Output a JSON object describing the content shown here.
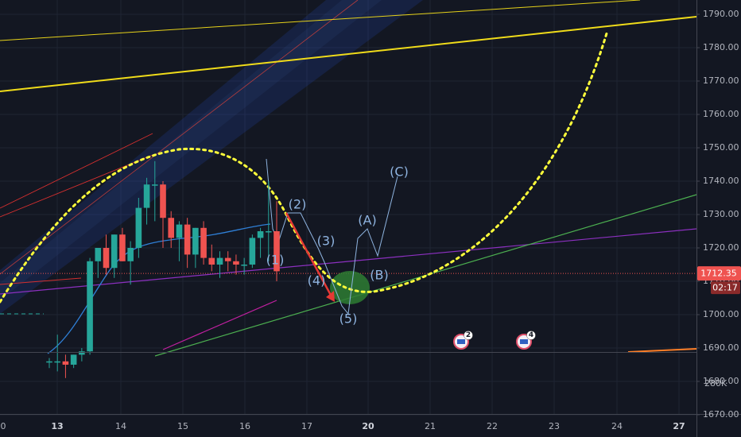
{
  "chart_data": {
    "type": "candlestick",
    "x_axis": {
      "labels": [
        "13",
        "14",
        "15",
        "16",
        "17",
        "20",
        "21",
        "22",
        "23",
        "24",
        "27"
      ],
      "bold_labels": [
        "13",
        "20",
        "27"
      ]
    },
    "y_axis": {
      "ticks": [
        1790,
        1780,
        1770,
        1760,
        1750,
        1740,
        1730,
        1720,
        1710,
        1700,
        1690,
        1680,
        1670
      ],
      "tick_labels": [
        "1790.00",
        "1780.00",
        "1770.00",
        "1760.00",
        "1750.00",
        "1740.00",
        "1730.00",
        "1720.00",
        "1710.00",
        "1700.00",
        "1690.00",
        "1680.00",
        "1670.00"
      ],
      "range": [
        1666,
        1793
      ]
    },
    "volume_axis": {
      "label": "280K"
    },
    "current_price": {
      "value": 1712.35,
      "label": "1712.35",
      "countdown": "02:17",
      "color": "#ef5350"
    },
    "candles": [
      {
        "o": 1686,
        "h": 1687,
        "l": 1684,
        "c": 1686
      },
      {
        "o": 1686,
        "h": 1694,
        "l": 1683,
        "c": 1686
      },
      {
        "o": 1686,
        "h": 1688,
        "l": 1681,
        "c": 1685
      },
      {
        "o": 1685,
        "h": 1688,
        "l": 1684,
        "c": 1688
      },
      {
        "o": 1688,
        "h": 1690,
        "l": 1686,
        "c": 1689
      },
      {
        "o": 1689,
        "h": 1717,
        "l": 1688,
        "c": 1716
      },
      {
        "o": 1716,
        "h": 1720,
        "l": 1711,
        "c": 1720
      },
      {
        "o": 1720,
        "h": 1724,
        "l": 1712,
        "c": 1714
      },
      {
        "o": 1714,
        "h": 1724,
        "l": 1711,
        "c": 1724
      },
      {
        "o": 1724,
        "h": 1726,
        "l": 1716,
        "c": 1716
      },
      {
        "o": 1716,
        "h": 1722,
        "l": 1709,
        "c": 1720
      },
      {
        "o": 1720,
        "h": 1735,
        "l": 1717,
        "c": 1732
      },
      {
        "o": 1732,
        "h": 1741,
        "l": 1727,
        "c": 1739
      },
      {
        "o": 1739,
        "h": 1746,
        "l": 1728,
        "c": 1739
      },
      {
        "o": 1739,
        "h": 1740,
        "l": 1720,
        "c": 1729
      },
      {
        "o": 1729,
        "h": 1731,
        "l": 1720,
        "c": 1723
      },
      {
        "o": 1723,
        "h": 1728,
        "l": 1716,
        "c": 1727
      },
      {
        "o": 1727,
        "h": 1729,
        "l": 1714,
        "c": 1718
      },
      {
        "o": 1718,
        "h": 1726,
        "l": 1714,
        "c": 1726
      },
      {
        "o": 1726,
        "h": 1728,
        "l": 1715,
        "c": 1717
      },
      {
        "o": 1717,
        "h": 1721,
        "l": 1713,
        "c": 1715
      },
      {
        "o": 1715,
        "h": 1719,
        "l": 1711,
        "c": 1717
      },
      {
        "o": 1717,
        "h": 1719,
        "l": 1713,
        "c": 1716
      },
      {
        "o": 1716,
        "h": 1718,
        "l": 1712,
        "c": 1715
      },
      {
        "o": 1715,
        "h": 1717,
        "l": 1712,
        "c": 1715
      },
      {
        "o": 1715,
        "h": 1724,
        "l": 1714,
        "c": 1723
      },
      {
        "o": 1723,
        "h": 1726,
        "l": 1717,
        "c": 1725
      },
      {
        "o": 1725,
        "h": 1740,
        "l": 1716,
        "c": 1725
      },
      {
        "o": 1725,
        "h": 1734,
        "l": 1710,
        "c": 1713
      }
    ],
    "wave_labels": [
      "(1)",
      "(2)",
      "(3)",
      "(4)",
      "(5)",
      "(A)",
      "(B)",
      "(C)"
    ],
    "event_badges": [
      "2",
      "4"
    ],
    "colors": {
      "up": "#26a69a",
      "down": "#ef5350",
      "projection": "#ffff3a",
      "trend_yellow": "#e6d21a",
      "support_green": "#4caf50",
      "purple_line": "#8c30c0",
      "ma_blue": "#2f7fd6",
      "channel_blue": "#2962ff",
      "magenta": "#c020a0",
      "target_zone": "#2e7d32",
      "orange": "#ff7f27"
    }
  }
}
